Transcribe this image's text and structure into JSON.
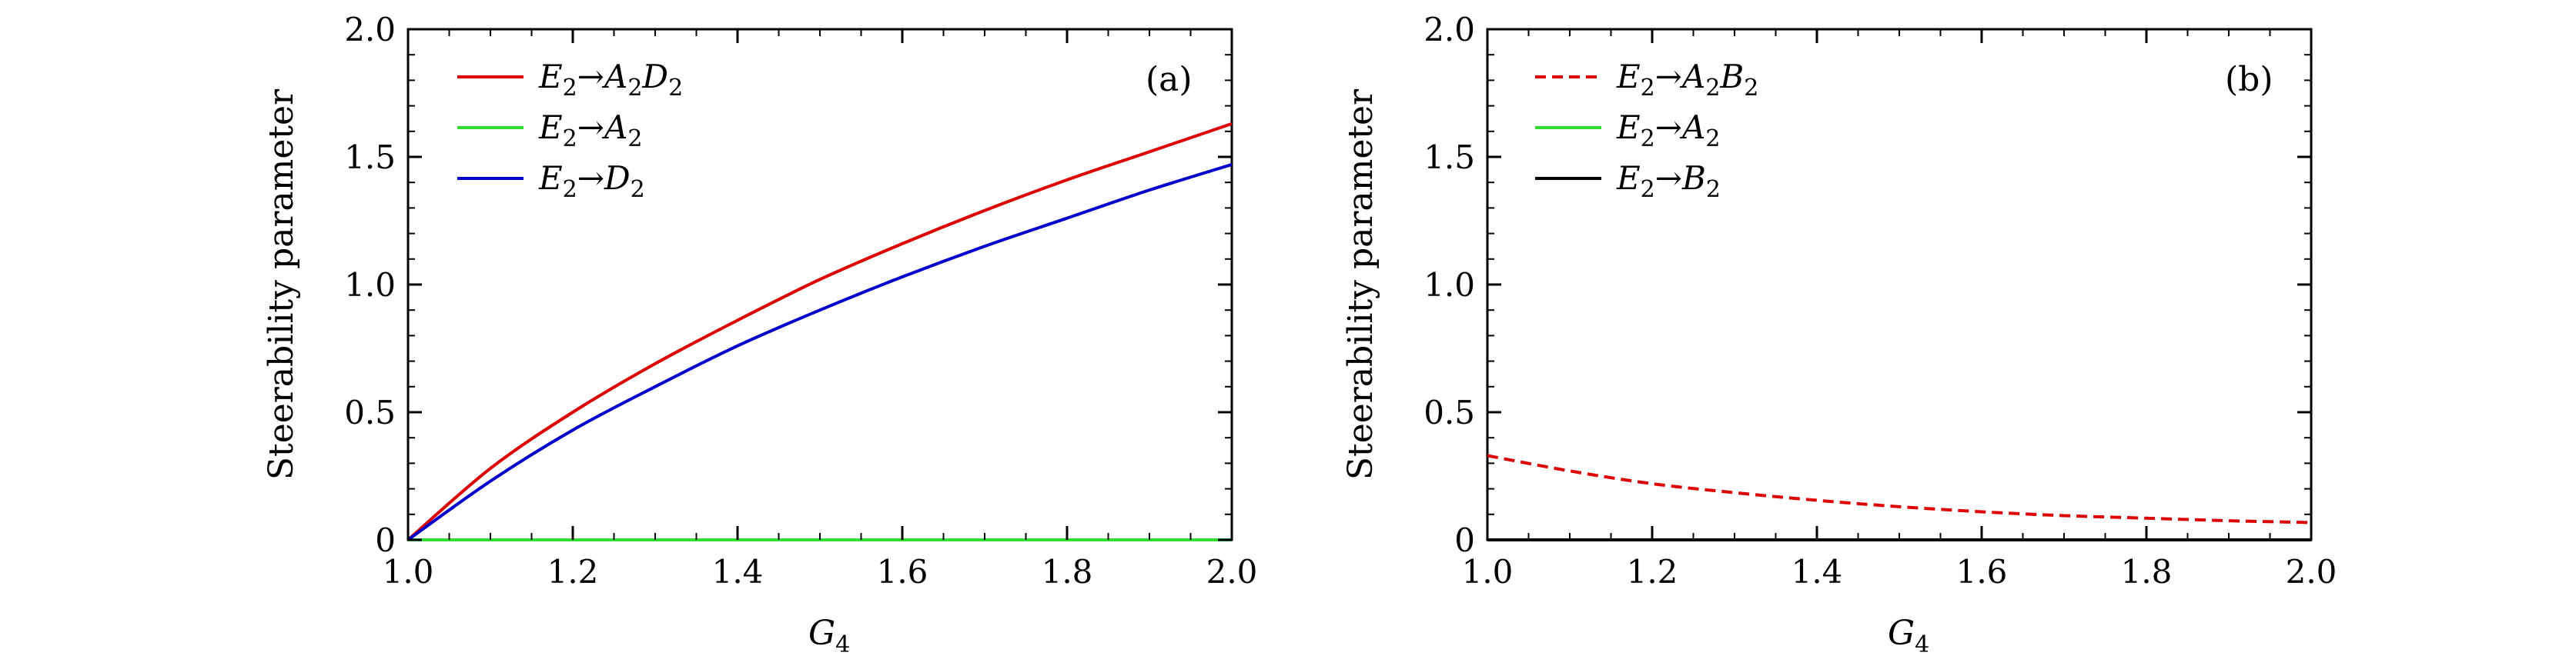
{
  "chart_data": [
    {
      "panel_label": "(a)",
      "type": "line",
      "xlabel": "G4",
      "xlabel_main": "G",
      "xlabel_sub": "4",
      "ylabel": "Steerability parameter",
      "xlim": [
        1.0,
        2.0
      ],
      "ylim": [
        0,
        2.0
      ],
      "xticks": [
        1.0,
        1.2,
        1.4,
        1.6,
        1.8,
        2.0
      ],
      "xtick_labels": [
        "1.0",
        "1.2",
        "1.4",
        "1.6",
        "1.8",
        "2.0"
      ],
      "yticks": [
        0,
        0.5,
        1.0,
        1.5,
        2.0
      ],
      "ytick_labels": [
        "0",
        "0.5",
        "1.0",
        "1.5",
        "2.0"
      ],
      "legend_position": "top-left",
      "grid": false,
      "series": [
        {
          "name": "E2→A2D2",
          "legend": {
            "p1": "E",
            "s1": "2",
            "arrow": "→",
            "p2": "A",
            "s2": "2",
            "p3": "D",
            "s3": "2"
          },
          "color": "#dd0000",
          "dash": "solid",
          "x": [
            1.0,
            1.1,
            1.2,
            1.3,
            1.4,
            1.5,
            1.6,
            1.7,
            1.8,
            1.9,
            2.0
          ],
          "y": [
            0.0,
            0.28,
            0.5,
            0.69,
            0.86,
            1.02,
            1.16,
            1.29,
            1.41,
            1.52,
            1.63
          ]
        },
        {
          "name": "E2→A2",
          "legend": {
            "p1": "E",
            "s1": "2",
            "arrow": "→",
            "p2": "A",
            "s2": "2"
          },
          "color": "#33dd33",
          "dash": "solid",
          "x": [
            1.0,
            2.0
          ],
          "y": [
            0.0,
            0.0
          ]
        },
        {
          "name": "E2→D2",
          "legend": {
            "p1": "E",
            "s1": "2",
            "arrow": "→",
            "p2": "D",
            "s2": "2"
          },
          "color": "#0000cc",
          "dash": "solid",
          "x": [
            1.0,
            1.1,
            1.2,
            1.3,
            1.4,
            1.5,
            1.6,
            1.7,
            1.8,
            1.9,
            2.0
          ],
          "y": [
            0.0,
            0.23,
            0.43,
            0.6,
            0.76,
            0.9,
            1.03,
            1.15,
            1.26,
            1.37,
            1.47
          ]
        }
      ]
    },
    {
      "panel_label": "(b)",
      "type": "line",
      "xlabel": "G4",
      "xlabel_main": "G",
      "xlabel_sub": "4",
      "ylabel": "Steerability parameter",
      "xlim": [
        1.0,
        2.0
      ],
      "ylim": [
        0,
        2.0
      ],
      "xticks": [
        1.0,
        1.2,
        1.4,
        1.6,
        1.8,
        2.0
      ],
      "xtick_labels": [
        "1.0",
        "1.2",
        "1.4",
        "1.6",
        "1.8",
        "2.0"
      ],
      "yticks": [
        0,
        0.5,
        1.0,
        1.5,
        2.0
      ],
      "ytick_labels": [
        "0",
        "0.5",
        "1.0",
        "1.5",
        "2.0"
      ],
      "legend_position": "top-left",
      "grid": false,
      "series": [
        {
          "name": "E2→A2B2",
          "legend": {
            "p1": "E",
            "s1": "2",
            "arrow": "→",
            "p2": "A",
            "s2": "2",
            "p3": "B",
            "s3": "2"
          },
          "color": "#dd0000",
          "dash": "dashed",
          "x": [
            1.0,
            1.1,
            1.2,
            1.3,
            1.4,
            1.5,
            1.6,
            1.7,
            1.8,
            1.9,
            2.0
          ],
          "y": [
            0.33,
            0.27,
            0.22,
            0.185,
            0.155,
            0.13,
            0.11,
            0.095,
            0.085,
            0.075,
            0.068
          ]
        },
        {
          "name": "E2→A2",
          "legend": {
            "p1": "E",
            "s1": "2",
            "arrow": "→",
            "p2": "A",
            "s2": "2"
          },
          "color": "#33dd33",
          "dash": "solid",
          "x": [
            1.0,
            2.0
          ],
          "y": [
            0.0,
            0.0
          ]
        },
        {
          "name": "E2→B2",
          "legend": {
            "p1": "E",
            "s1": "2",
            "arrow": "→",
            "p2": "B",
            "s2": "2"
          },
          "color": "#000000",
          "dash": "solid",
          "x": [
            1.0,
            2.0
          ],
          "y": [
            0.0,
            0.0
          ]
        }
      ]
    }
  ]
}
